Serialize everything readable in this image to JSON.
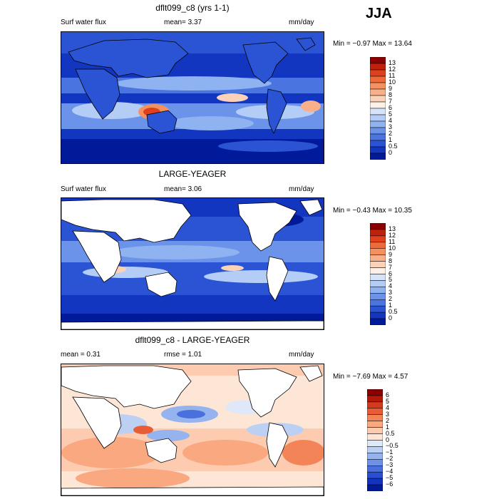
{
  "season": "JJA",
  "panels": [
    {
      "title": "dflt099_c8 (yrs 1-1)",
      "left_label": "Surf water flux",
      "center_label": "mean=   3.37",
      "units": "mm/day",
      "minmax": "Min =  −0.97 Max =  13.64",
      "land_masked": false,
      "colorbar": {
        "labels": [
          "13",
          "12",
          "11",
          "10",
          "9",
          "8",
          "7",
          "6",
          "5",
          "4",
          "3",
          "2",
          "1",
          "0.5",
          "0"
        ],
        "colors": [
          "#8b0000",
          "#c1200c",
          "#e0401c",
          "#ef6a3a",
          "#f5905f",
          "#f8b08a",
          "#fbd2b8",
          "#fdf0e6",
          "#d6e4fa",
          "#b4cdf6",
          "#8fb2f0",
          "#6b93e9",
          "#4a74e0",
          "#2a54d4",
          "#1236c0",
          "#001a99"
        ]
      }
    },
    {
      "title": "LARGE-YEAGER",
      "left_label": "Surf water flux",
      "center_label": "mean=   3.06",
      "units": "mm/day",
      "minmax": "Min =  −0.43 Max =  10.35",
      "land_masked": true,
      "colorbar": {
        "labels": [
          "13",
          "12",
          "11",
          "10",
          "9",
          "8",
          "7",
          "6",
          "5",
          "4",
          "3",
          "2",
          "1",
          "0.5",
          "0"
        ],
        "colors": [
          "#8b0000",
          "#c1200c",
          "#e0401c",
          "#ef6a3a",
          "#f5905f",
          "#f8b08a",
          "#fbd2b8",
          "#fdf0e6",
          "#d6e4fa",
          "#b4cdf6",
          "#8fb2f0",
          "#6b93e9",
          "#4a74e0",
          "#2a54d4",
          "#1236c0",
          "#001a99"
        ]
      }
    },
    {
      "title": "dflt099_c8 - LARGE-YEAGER",
      "left_label": "mean =    0.31",
      "center_label": "rmse =    1.01",
      "units": "mm/day",
      "minmax": "Min =  −7.69 Max =    4.57",
      "land_masked": true,
      "colorbar": {
        "labels": [
          "6",
          "5",
          "4",
          "3",
          "2",
          "1",
          "0.5",
          "0",
          "−0.5",
          "−1",
          "−2",
          "−3",
          "−4",
          "−5",
          "−6"
        ],
        "colors": [
          "#8b0000",
          "#b3180a",
          "#d43a1c",
          "#e75e36",
          "#f38458",
          "#f9a880",
          "#fccbb0",
          "#fde6d6",
          "#dfe8f8",
          "#bcd0f4",
          "#95b3ee",
          "#6e92e6",
          "#4a70de",
          "#2a4ed2",
          "#1232c0",
          "#001a99"
        ]
      }
    }
  ]
}
